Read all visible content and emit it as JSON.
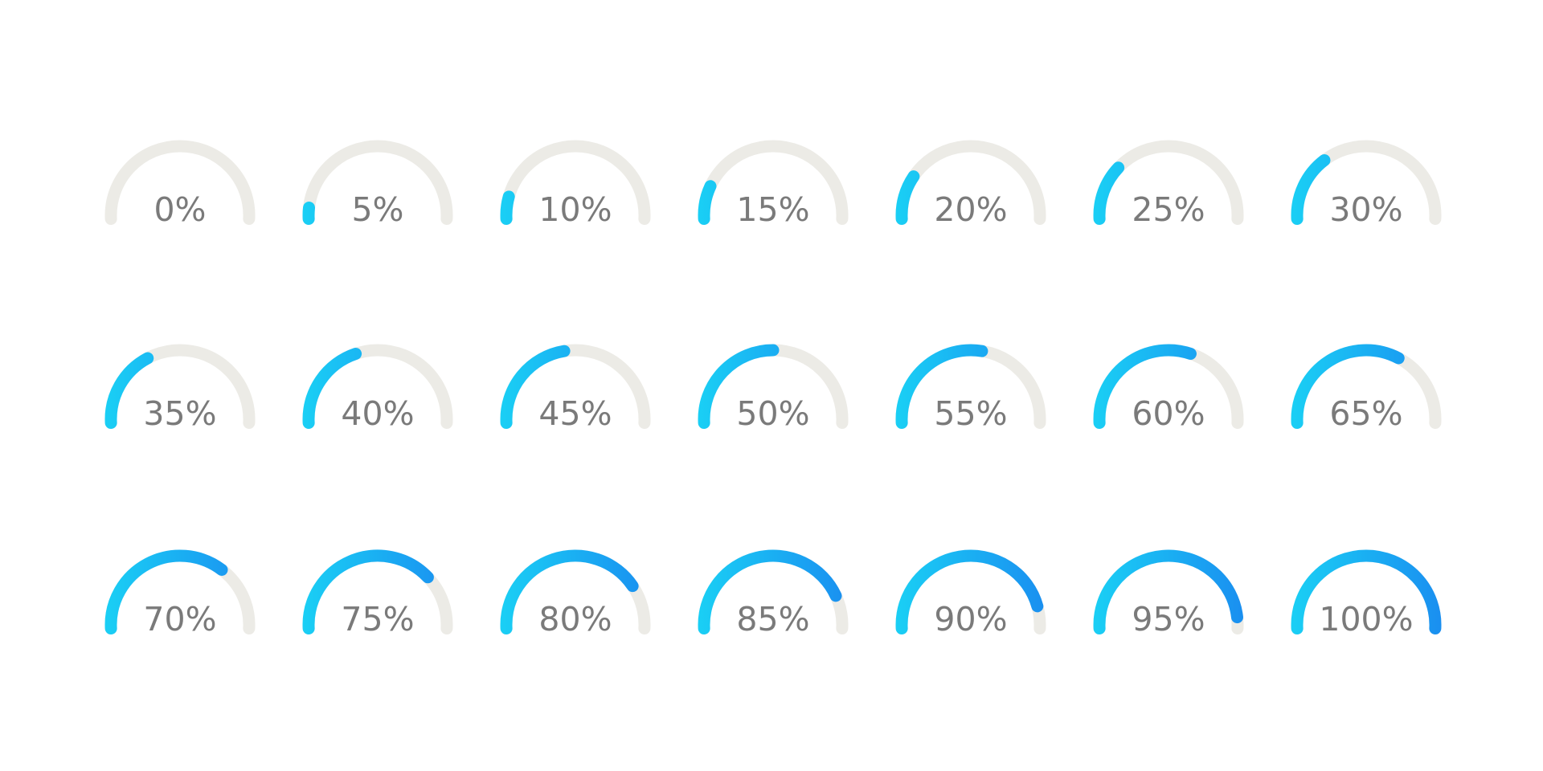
{
  "colors": {
    "track": "#ecebe6",
    "fill_start": "#1ad2f5",
    "fill_end": "#1a8cf0",
    "label": "#7a7a7a",
    "background": "#ffffff"
  },
  "gauges": [
    {
      "label": "0%",
      "value": 0
    },
    {
      "label": "5%",
      "value": 5
    },
    {
      "label": "10%",
      "value": 10
    },
    {
      "label": "15%",
      "value": 15
    },
    {
      "label": "20%",
      "value": 20
    },
    {
      "label": "25%",
      "value": 25
    },
    {
      "label": "30%",
      "value": 30
    },
    {
      "label": "35%",
      "value": 35
    },
    {
      "label": "40%",
      "value": 40
    },
    {
      "label": "45%",
      "value": 45
    },
    {
      "label": "50%",
      "value": 50
    },
    {
      "label": "55%",
      "value": 55
    },
    {
      "label": "60%",
      "value": 60
    },
    {
      "label": "65%",
      "value": 65
    },
    {
      "label": "70%",
      "value": 70
    },
    {
      "label": "75%",
      "value": 75
    },
    {
      "label": "80%",
      "value": 80
    },
    {
      "label": "85%",
      "value": 85
    },
    {
      "label": "90%",
      "value": 90
    },
    {
      "label": "95%",
      "value": 95
    },
    {
      "label": "100%",
      "value": 100
    }
  ]
}
